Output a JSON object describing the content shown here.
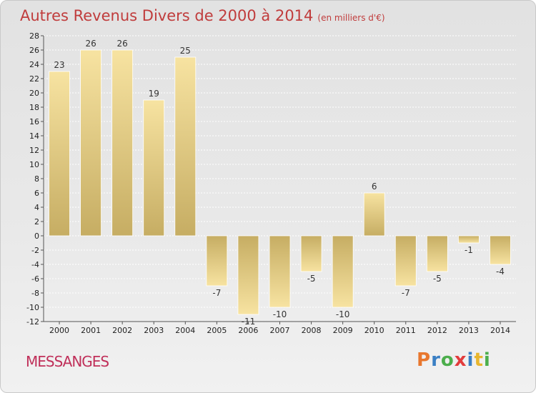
{
  "header": {
    "title": "Autres Revenus Divers de 2000 à 2014",
    "subtitle": "(en milliers d'€)"
  },
  "footer": {
    "place": "MESSANGES",
    "logo": "Proxiti",
    "logo_colors": [
      "#e8772e",
      "#3a7fc4",
      "#4cae4c",
      "#e23c3c",
      "#3a7fc4",
      "#e8b62e",
      "#4cae4c"
    ]
  },
  "colors": {
    "bar_light": "#f7e3a1",
    "bar_dark": "#c6ad63",
    "title": "#c03c3c",
    "place": "#c0305a"
  },
  "chart_data": {
    "type": "bar",
    "categories": [
      "2000",
      "2001",
      "2002",
      "2003",
      "2004",
      "2005",
      "2006",
      "2007",
      "2008",
      "2009",
      "2010",
      "2011",
      "2012",
      "2013",
      "2014"
    ],
    "values": [
      23,
      26,
      26,
      19,
      25,
      -7,
      -11,
      -10,
      -5,
      -10,
      6,
      -7,
      -5,
      -1,
      -4
    ],
    "ylim": [
      -12,
      28
    ],
    "yticks": [
      -12,
      -10,
      -8,
      -6,
      -4,
      -2,
      0,
      2,
      4,
      6,
      8,
      10,
      12,
      14,
      16,
      18,
      20,
      22,
      24,
      26,
      28
    ],
    "grid": true
  }
}
